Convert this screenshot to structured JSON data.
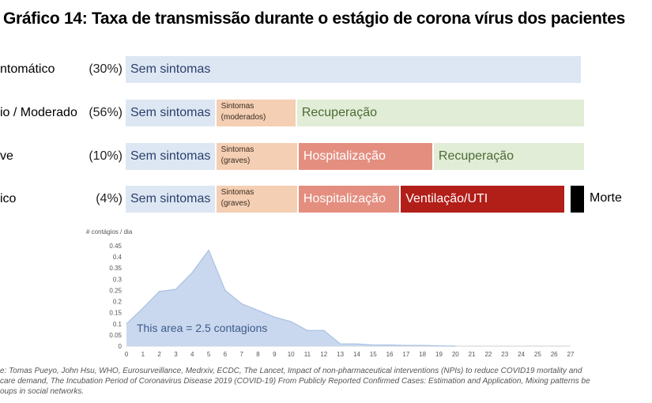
{
  "title": "Gráfico 14: Taxa de transmissão durante o estágio de corona vírus dos pacientes",
  "rows": [
    {
      "label": "ntomático",
      "pct": "(30%)",
      "segments": [
        {
          "text": "Sem sintomas",
          "small": false,
          "cls": "stage-none",
          "x0": 0,
          "x1": 27.7
        }
      ]
    },
    {
      "label": "io / Moderado",
      "pct": "(56%)",
      "segments": [
        {
          "text": "Sem sintomas",
          "small": false,
          "cls": "stage-none",
          "x0": 0,
          "x1": 5.5
        },
        {
          "text": "Sintomas\n(moderados)",
          "small": true,
          "cls": "stage-mod",
          "x0": 5.5,
          "x1": 10.4
        },
        {
          "text": "Recuperação",
          "small": false,
          "cls": "stage-rec",
          "x0": 10.4,
          "x1": 27.9
        }
      ]
    },
    {
      "label": "ve",
      "pct": "(10%)",
      "segments": [
        {
          "text": "Sem sintomas",
          "small": false,
          "cls": "stage-none",
          "x0": 0,
          "x1": 5.5
        },
        {
          "text": "Sintomas\n(graves)",
          "small": true,
          "cls": "stage-mod",
          "x0": 5.5,
          "x1": 10.5
        },
        {
          "text": "Hospitalização",
          "small": false,
          "cls": "stage-hosp",
          "x0": 10.5,
          "x1": 18.7
        },
        {
          "text": "Recuperação",
          "small": false,
          "cls": "stage-rec",
          "x0": 18.7,
          "x1": 27.9
        }
      ]
    },
    {
      "label": "ico",
      "pct": "(4%)",
      "segments": [
        {
          "text": "Sem sintomas",
          "small": false,
          "cls": "stage-none",
          "x0": 0,
          "x1": 5.5
        },
        {
          "text": "Sintomas\n(graves)",
          "small": true,
          "cls": "stage-mod",
          "x0": 5.5,
          "x1": 10.5
        },
        {
          "text": "Hospitalização",
          "small": false,
          "cls": "stage-hosp",
          "x0": 10.5,
          "x1": 16.7
        },
        {
          "text": "Ventilação/UTI",
          "small": false,
          "cls": "stage-icu",
          "x0": 16.7,
          "x1": 26.7
        },
        {
          "text": "",
          "small": false,
          "cls": "stage-death",
          "x0": 27.0,
          "x1": 27.9
        }
      ]
    }
  ],
  "death_label": "Morte",
  "chart_data": {
    "type": "area",
    "ylabel": "# contágios / dia",
    "x": [
      0,
      1,
      2,
      3,
      4,
      5,
      6,
      7,
      8,
      9,
      10,
      11,
      12,
      13,
      14,
      15,
      16,
      17,
      18,
      19,
      20
    ],
    "values": [
      0.1,
      0.17,
      0.245,
      0.255,
      0.33,
      0.43,
      0.25,
      0.19,
      0.16,
      0.13,
      0.11,
      0.07,
      0.07,
      0.01,
      0.01,
      0.005,
      0.005,
      0.003,
      0.003,
      0.001,
      0
    ],
    "xticks": [
      0,
      1,
      2,
      3,
      4,
      5,
      6,
      7,
      8,
      9,
      10,
      11,
      12,
      13,
      14,
      15,
      16,
      17,
      18,
      19,
      20,
      21,
      22,
      23,
      24,
      25,
      26,
      27
    ],
    "yticks": [
      "0",
      "0.05",
      "0.1",
      "0.15",
      "0.2",
      "0.25",
      "0.3",
      "0.35",
      "0.4",
      "0.45"
    ],
    "ylim": [
      0,
      0.45
    ],
    "xlim": [
      0,
      27
    ],
    "annotation": "This area = 2.5 contagions",
    "fill_color": "#c9d8ee",
    "line_color": "#a9c0e3"
  },
  "source_lines": [
    "e: Tomas Pueyo, John Hsu, WHO, Eurosurveillance, Medrxiv, ECDC, The Lancet, Impact of non-pharmaceutical interventions (NPIs) to reduce COVID19 mortality and",
    "care demand, The Incubation Period of Coronavirus Disease 2019 (COVID-19) From Publicly Reported Confirmed Cases: Estimation and Application, Mixing patterns be",
    "oups in social networks."
  ]
}
